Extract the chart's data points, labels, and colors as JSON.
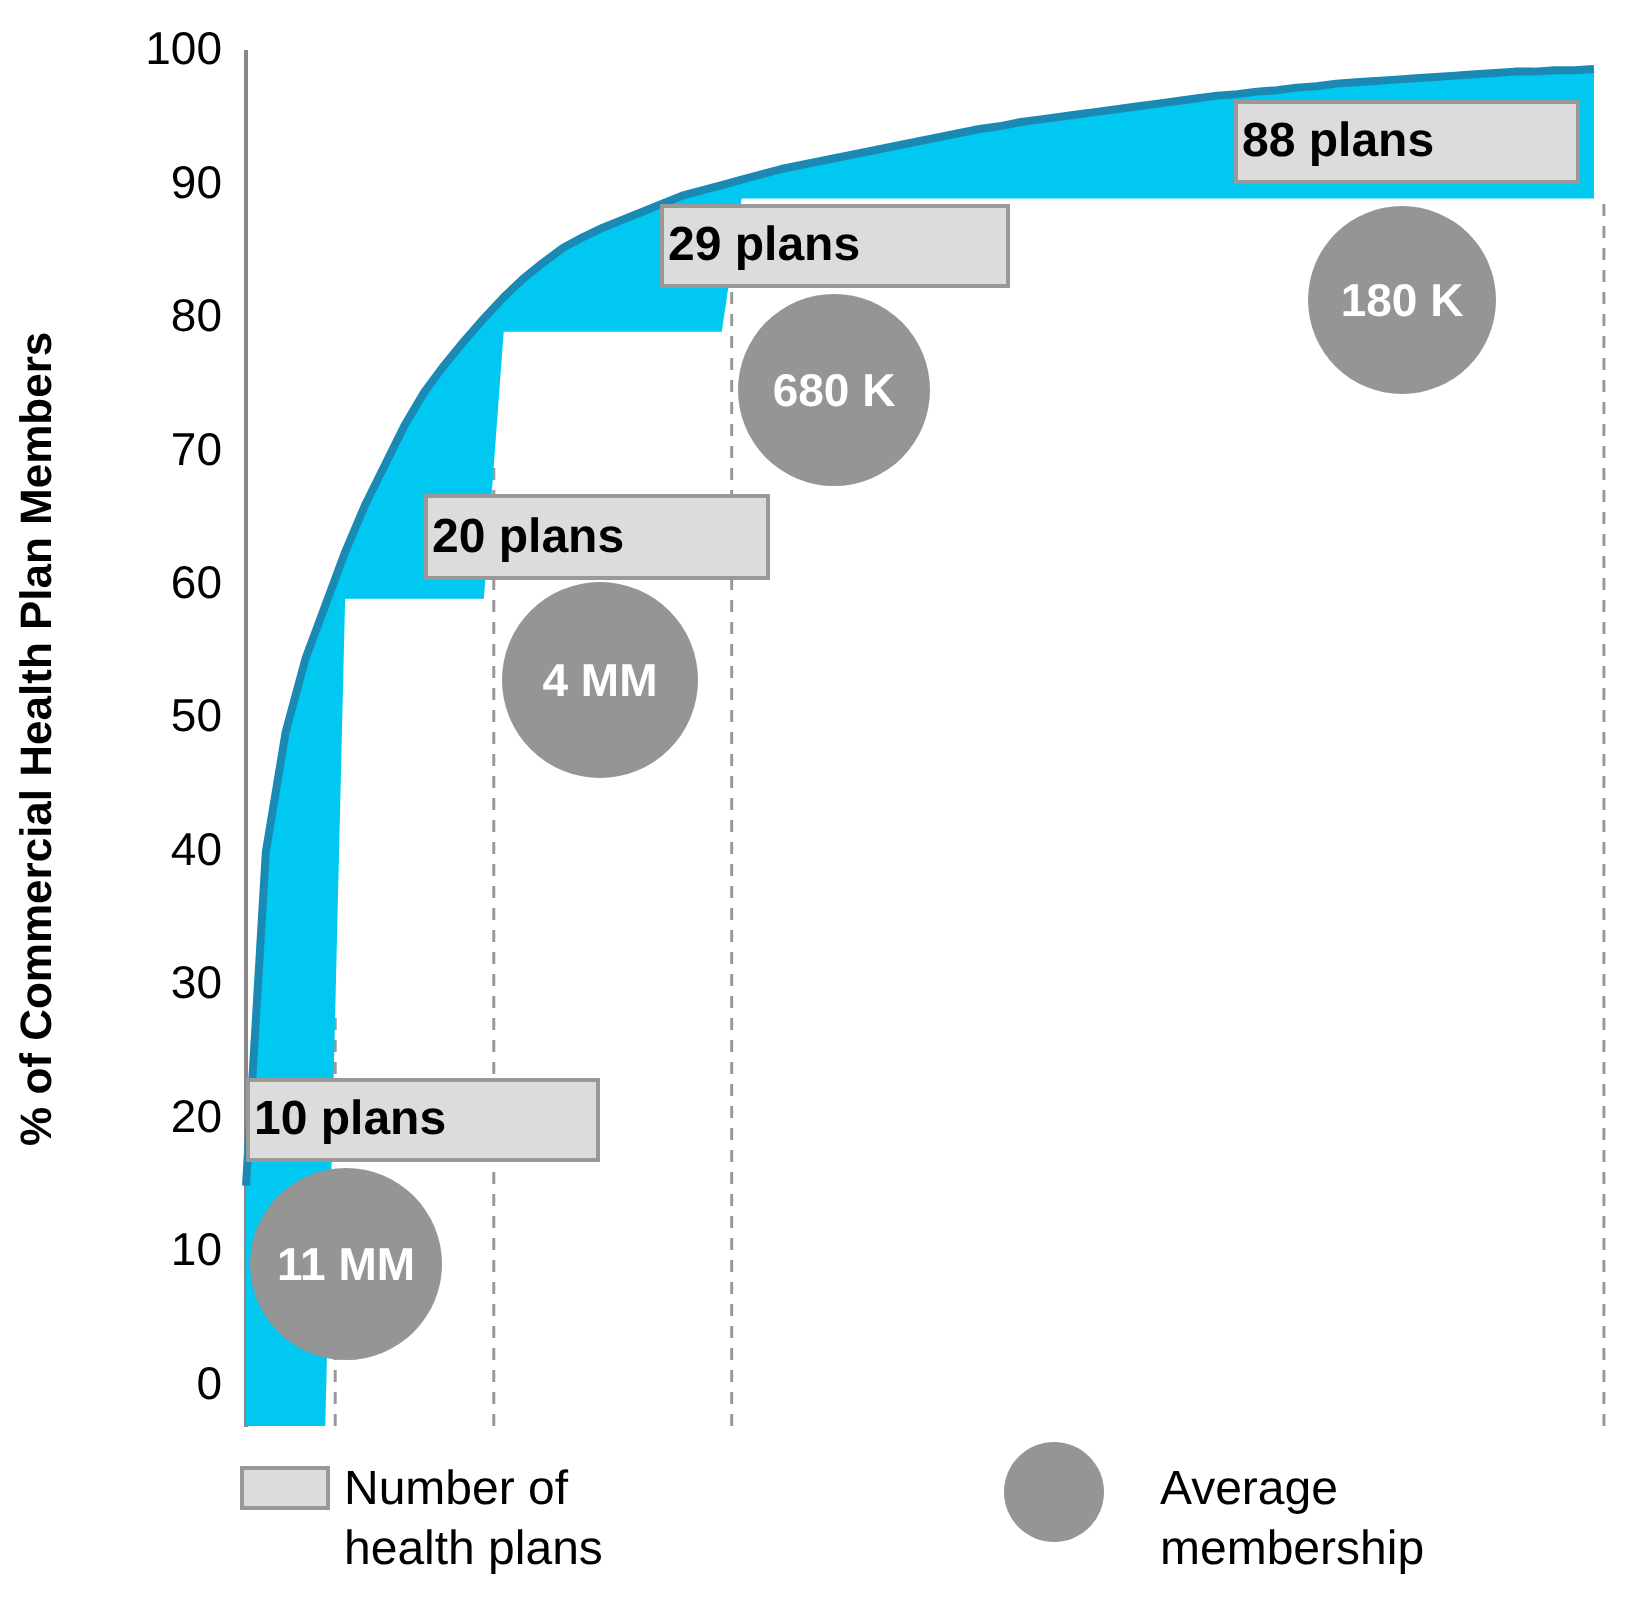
{
  "chart_data": {
    "type": "line",
    "ylabel": "% of Commercial Health Plan Members",
    "categories": [
      null,
      null,
      null,
      null,
      null,
      null,
      null,
      null,
      null,
      null,
      null,
      null,
      null,
      null,
      null,
      null,
      null,
      null,
      null,
      null,
      null,
      null,
      null,
      null,
      null,
      null,
      null,
      null,
      null,
      null,
      null,
      null,
      null,
      null,
      null,
      null,
      null,
      null,
      null,
      null,
      null,
      null,
      null,
      null,
      null,
      null,
      null,
      null,
      null,
      null,
      null,
      null,
      null,
      null,
      null,
      null,
      null,
      null,
      null,
      null,
      null,
      null,
      null,
      null,
      null,
      null,
      null,
      null,
      null
    ],
    "ylim": [
      -3,
      100
    ],
    "yticks": [
      0,
      10,
      20,
      30,
      40,
      50,
      60,
      70,
      80,
      90,
      100
    ],
    "tick_labels": "y",
    "grid": false,
    "series": [
      {
        "type": "line",
        "color": "#1a8ab5",
        "values": [
          15,
          40,
          49,
          54.5,
          58.5,
          62.5,
          66,
          69,
          72,
          74.5,
          76.5,
          78.3,
          80,
          81.6,
          83,
          84.2,
          85.3,
          86.1,
          86.8,
          87.4,
          88,
          88.6,
          89.2,
          89.6,
          90,
          90.4,
          90.8,
          91.2,
          91.5,
          91.8,
          92.1,
          92.4,
          92.7,
          93,
          93.3,
          93.6,
          93.9,
          94.2,
          94.4,
          94.7,
          94.9,
          95.1,
          95.3,
          95.5,
          95.7,
          95.9,
          96.1,
          96.3,
          96.5,
          96.7,
          96.8,
          97,
          97.1,
          97.3,
          97.4,
          97.6,
          97.7,
          97.8,
          97.9,
          98,
          98.1,
          98.2,
          98.3,
          98.4,
          98.5,
          98.5,
          98.6,
          98.6,
          98.7
        ],
        "lower": [
          -3,
          -3,
          -3,
          -3,
          -3,
          59,
          59,
          59,
          59,
          59,
          59,
          59,
          59,
          79,
          79,
          79,
          79,
          79,
          79,
          79,
          79,
          79,
          79,
          79,
          79,
          89,
          89,
          89,
          89,
          89,
          89,
          89,
          89,
          89,
          89,
          89,
          89,
          89,
          89,
          89,
          89,
          89,
          89,
          89,
          89,
          89,
          89,
          89,
          89,
          89,
          89,
          89,
          89,
          89,
          89,
          89,
          89,
          89,
          89,
          89,
          89,
          89,
          89,
          89,
          89,
          89,
          89,
          89,
          89
        ],
        "upper": [
          15,
          40,
          49,
          54.5,
          58.5,
          62.5,
          66,
          69,
          72,
          74.5,
          76.5,
          78.3,
          80,
          81.6,
          83,
          84.2,
          85.3,
          86.1,
          86.8,
          87.4,
          88,
          88.6,
          89.2,
          89.6,
          90,
          90.4,
          90.8,
          91.2,
          91.5,
          91.8,
          92.1,
          92.4,
          92.7,
          93,
          93.3,
          93.6,
          93.9,
          94.2,
          94.4,
          94.7,
          94.9,
          95.1,
          95.3,
          95.5,
          95.7,
          95.9,
          96.1,
          96.3,
          96.5,
          96.7,
          96.8,
          97,
          97.1,
          97.3,
          97.4,
          97.6,
          97.7,
          97.8,
          97.9,
          98,
          98.1,
          98.2,
          98.3,
          98.4,
          98.5,
          98.5,
          98.6,
          98.6,
          98.7
        ]
      }
    ],
    "annotations": [
      "10 plans",
      "11 MM",
      "20 plans",
      "4 MM",
      "29 plans",
      "680 K",
      "88 plans",
      "180 K",
      "Number of health plans",
      "Average membership"
    ]
  }
}
